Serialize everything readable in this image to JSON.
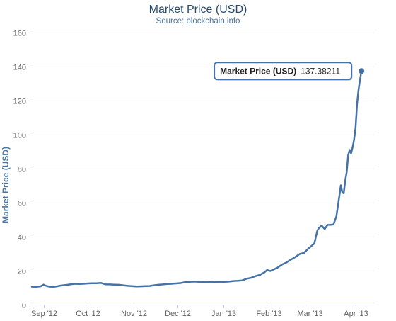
{
  "colors": {
    "series": "#4572a7",
    "grid": "#d8d8d8",
    "axis": "#c0d0e0",
    "title": "#274b6d",
    "subtitle": "#4d759e",
    "tick_text": "#606060"
  },
  "chart_data": {
    "type": "line",
    "title": "Market Price (USD)",
    "subtitle": "Source: blockchain.info",
    "xlabel": "",
    "ylabel": "Market Price (USD)",
    "xlim": [
      "2012-08-24",
      "2013-04-16"
    ],
    "ylim": [
      0,
      160
    ],
    "yticks": [
      0,
      20,
      40,
      60,
      80,
      100,
      120,
      140,
      160
    ],
    "xticks": [
      {
        "date": "2012-09-01",
        "label": "Sep '12"
      },
      {
        "date": "2012-10-01",
        "label": "Oct '12"
      },
      {
        "date": "2012-11-01",
        "label": "Nov '12"
      },
      {
        "date": "2012-12-01",
        "label": "Dec '12"
      },
      {
        "date": "2013-01-01",
        "label": "Jan '13"
      },
      {
        "date": "2013-02-01",
        "label": "Feb '13"
      },
      {
        "date": "2013-03-01",
        "label": "Mar '13"
      },
      {
        "date": "2013-04-01",
        "label": "Apr '13"
      }
    ],
    "grid": true,
    "legend": "none",
    "series": [
      {
        "points": [
          [
            "2012-08-24",
            10.6
          ],
          [
            "2012-08-27",
            10.5
          ],
          [
            "2012-08-30",
            10.8
          ],
          [
            "2012-09-01",
            11.8
          ],
          [
            "2012-09-02",
            11.3
          ],
          [
            "2012-09-04",
            10.8
          ],
          [
            "2012-09-07",
            10.4
          ],
          [
            "2012-09-10",
            10.8
          ],
          [
            "2012-09-13",
            11.3
          ],
          [
            "2012-09-16",
            11.6
          ],
          [
            "2012-09-19",
            11.9
          ],
          [
            "2012-09-22",
            12.3
          ],
          [
            "2012-09-25",
            12.2
          ],
          [
            "2012-09-28",
            12.3
          ],
          [
            "2012-10-01",
            12.5
          ],
          [
            "2012-10-04",
            12.6
          ],
          [
            "2012-10-07",
            12.6
          ],
          [
            "2012-10-10",
            12.8
          ],
          [
            "2012-10-13",
            12.0
          ],
          [
            "2012-10-16",
            11.9
          ],
          [
            "2012-10-19",
            11.8
          ],
          [
            "2012-10-22",
            11.7
          ],
          [
            "2012-10-25",
            11.4
          ],
          [
            "2012-10-28",
            11.1
          ],
          [
            "2012-10-31",
            10.9
          ],
          [
            "2012-11-03",
            10.7
          ],
          [
            "2012-11-06",
            10.8
          ],
          [
            "2012-11-09",
            10.9
          ],
          [
            "2012-11-12",
            11.0
          ],
          [
            "2012-11-15",
            11.4
          ],
          [
            "2012-11-18",
            11.7
          ],
          [
            "2012-11-21",
            11.9
          ],
          [
            "2012-11-24",
            12.2
          ],
          [
            "2012-11-27",
            12.3
          ],
          [
            "2012-11-30",
            12.5
          ],
          [
            "2012-12-03",
            12.7
          ],
          [
            "2012-12-06",
            13.2
          ],
          [
            "2012-12-09",
            13.4
          ],
          [
            "2012-12-12",
            13.6
          ],
          [
            "2012-12-15",
            13.5
          ],
          [
            "2012-12-18",
            13.3
          ],
          [
            "2012-12-21",
            13.4
          ],
          [
            "2012-12-24",
            13.3
          ],
          [
            "2012-12-27",
            13.4
          ],
          [
            "2012-12-30",
            13.5
          ],
          [
            "2013-01-02",
            13.4
          ],
          [
            "2013-01-05",
            13.6
          ],
          [
            "2013-01-08",
            13.9
          ],
          [
            "2013-01-11",
            14.1
          ],
          [
            "2013-01-14",
            14.3
          ],
          [
            "2013-01-17",
            15.3
          ],
          [
            "2013-01-20",
            15.8
          ],
          [
            "2013-01-23",
            16.8
          ],
          [
            "2013-01-26",
            17.5
          ],
          [
            "2013-01-29",
            19.0
          ],
          [
            "2013-01-31",
            20.4
          ],
          [
            "2013-02-02",
            19.8
          ],
          [
            "2013-02-04",
            20.6
          ],
          [
            "2013-02-07",
            21.8
          ],
          [
            "2013-02-10",
            23.6
          ],
          [
            "2013-02-13",
            24.8
          ],
          [
            "2013-02-16",
            26.5
          ],
          [
            "2013-02-19",
            28.0
          ],
          [
            "2013-02-22",
            29.8
          ],
          [
            "2013-02-25",
            30.5
          ],
          [
            "2013-02-28",
            33.1
          ],
          [
            "2013-03-02",
            34.5
          ],
          [
            "2013-03-04",
            36.0
          ],
          [
            "2013-03-06",
            43.5
          ],
          [
            "2013-03-07",
            45.0
          ],
          [
            "2013-03-09",
            46.5
          ],
          [
            "2013-03-11",
            44.5
          ],
          [
            "2013-03-13",
            46.9
          ],
          [
            "2013-03-15",
            47.0
          ],
          [
            "2013-03-17",
            47.2
          ],
          [
            "2013-03-19",
            52.0
          ],
          [
            "2013-03-21",
            64.0
          ],
          [
            "2013-03-22",
            70.2
          ],
          [
            "2013-03-23",
            66.0
          ],
          [
            "2013-03-24",
            65.5
          ],
          [
            "2013-03-25",
            73.0
          ],
          [
            "2013-03-26",
            78.0
          ],
          [
            "2013-03-27",
            88.0
          ],
          [
            "2013-03-28",
            91.0
          ],
          [
            "2013-03-29",
            89.0
          ],
          [
            "2013-03-30",
            92.5
          ],
          [
            "2013-03-31",
            97.0
          ],
          [
            "2013-04-01",
            104.0
          ],
          [
            "2013-04-02",
            118.0
          ],
          [
            "2013-04-03",
            126.0
          ],
          [
            "2013-04-04",
            132.0
          ],
          [
            "2013-04-05",
            137.38211
          ]
        ]
      }
    ],
    "tooltip": {
      "label": "Market Price (USD)",
      "value": "137.38211",
      "date": "2013-04-05"
    }
  }
}
